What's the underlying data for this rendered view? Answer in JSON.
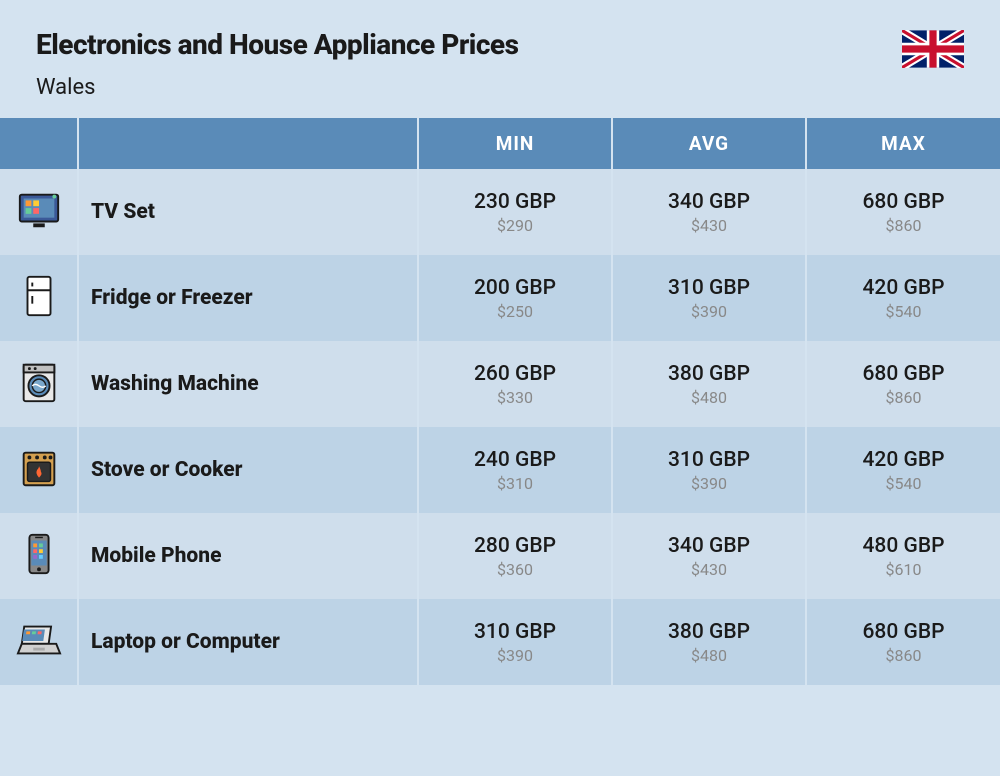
{
  "header": {
    "title": "Electronics and House Appliance Prices",
    "subtitle": "Wales"
  },
  "columns": {
    "min": "MIN",
    "avg": "AVG",
    "max": "MAX"
  },
  "rows": [
    {
      "icon": "tv",
      "name": "TV Set",
      "min_gbp": "230 GBP",
      "min_usd": "$290",
      "avg_gbp": "340 GBP",
      "avg_usd": "$430",
      "max_gbp": "680 GBP",
      "max_usd": "$860"
    },
    {
      "icon": "fridge",
      "name": "Fridge or Freezer",
      "min_gbp": "200 GBP",
      "min_usd": "$250",
      "avg_gbp": "310 GBP",
      "avg_usd": "$390",
      "max_gbp": "420 GBP",
      "max_usd": "$540"
    },
    {
      "icon": "washer",
      "name": "Washing Machine",
      "min_gbp": "260 GBP",
      "min_usd": "$330",
      "avg_gbp": "380 GBP",
      "avg_usd": "$480",
      "max_gbp": "680 GBP",
      "max_usd": "$860"
    },
    {
      "icon": "stove",
      "name": "Stove or Cooker",
      "min_gbp": "240 GBP",
      "min_usd": "$310",
      "avg_gbp": "310 GBP",
      "avg_usd": "$390",
      "max_gbp": "420 GBP",
      "max_usd": "$540"
    },
    {
      "icon": "phone",
      "name": "Mobile Phone",
      "min_gbp": "280 GBP",
      "min_usd": "$360",
      "avg_gbp": "340 GBP",
      "avg_usd": "$430",
      "max_gbp": "480 GBP",
      "max_usd": "$610"
    },
    {
      "icon": "laptop",
      "name": "Laptop or Computer",
      "min_gbp": "310 GBP",
      "min_usd": "$390",
      "avg_gbp": "380 GBP",
      "avg_usd": "$480",
      "max_gbp": "680 GBP",
      "max_usd": "$860"
    }
  ],
  "styling": {
    "background_color": "#d4e3f0",
    "header_bg_color": "#5a8bb8",
    "header_text_color": "#ffffff",
    "row_even_bg": "#bdd3e6",
    "row_odd_bg": "#cfdeec",
    "divider_color": "#d4e3f0",
    "title_color": "#1a1a1a",
    "price_primary_color": "#1a1a1a",
    "price_secondary_color": "#888888",
    "title_fontsize": 28,
    "subtitle_fontsize": 22,
    "header_fontsize": 19,
    "name_fontsize": 21,
    "price_fontsize": 21,
    "secondary_fontsize": 16
  }
}
